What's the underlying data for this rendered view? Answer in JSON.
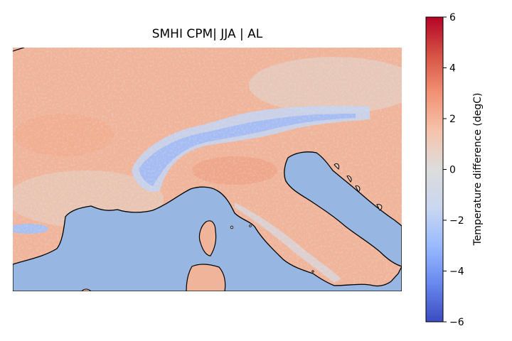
{
  "title": "SMHI CPM| JJA | AL",
  "colorbar": {
    "label": "Temperature difference (degC)",
    "min": -6,
    "max": 6,
    "ticks": [
      6,
      4,
      2,
      0,
      -2,
      -4,
      -6
    ],
    "tick_labels": [
      "6",
      "4",
      "2",
      "0",
      "−2",
      "−4",
      "−6"
    ],
    "colormap": "coolwarm",
    "colors": [
      "#3b4cc0",
      "#6788ee",
      "#9abbff",
      "#c9d7f0",
      "#dddcdc",
      "#f5c4ac",
      "#f29274",
      "#d65244",
      "#b40426"
    ]
  },
  "map": {
    "sea_color": "#97b6e1",
    "coast_color": "#000000",
    "mean_land_anomaly": 1.3,
    "alps_anomaly": -1.5
  }
}
